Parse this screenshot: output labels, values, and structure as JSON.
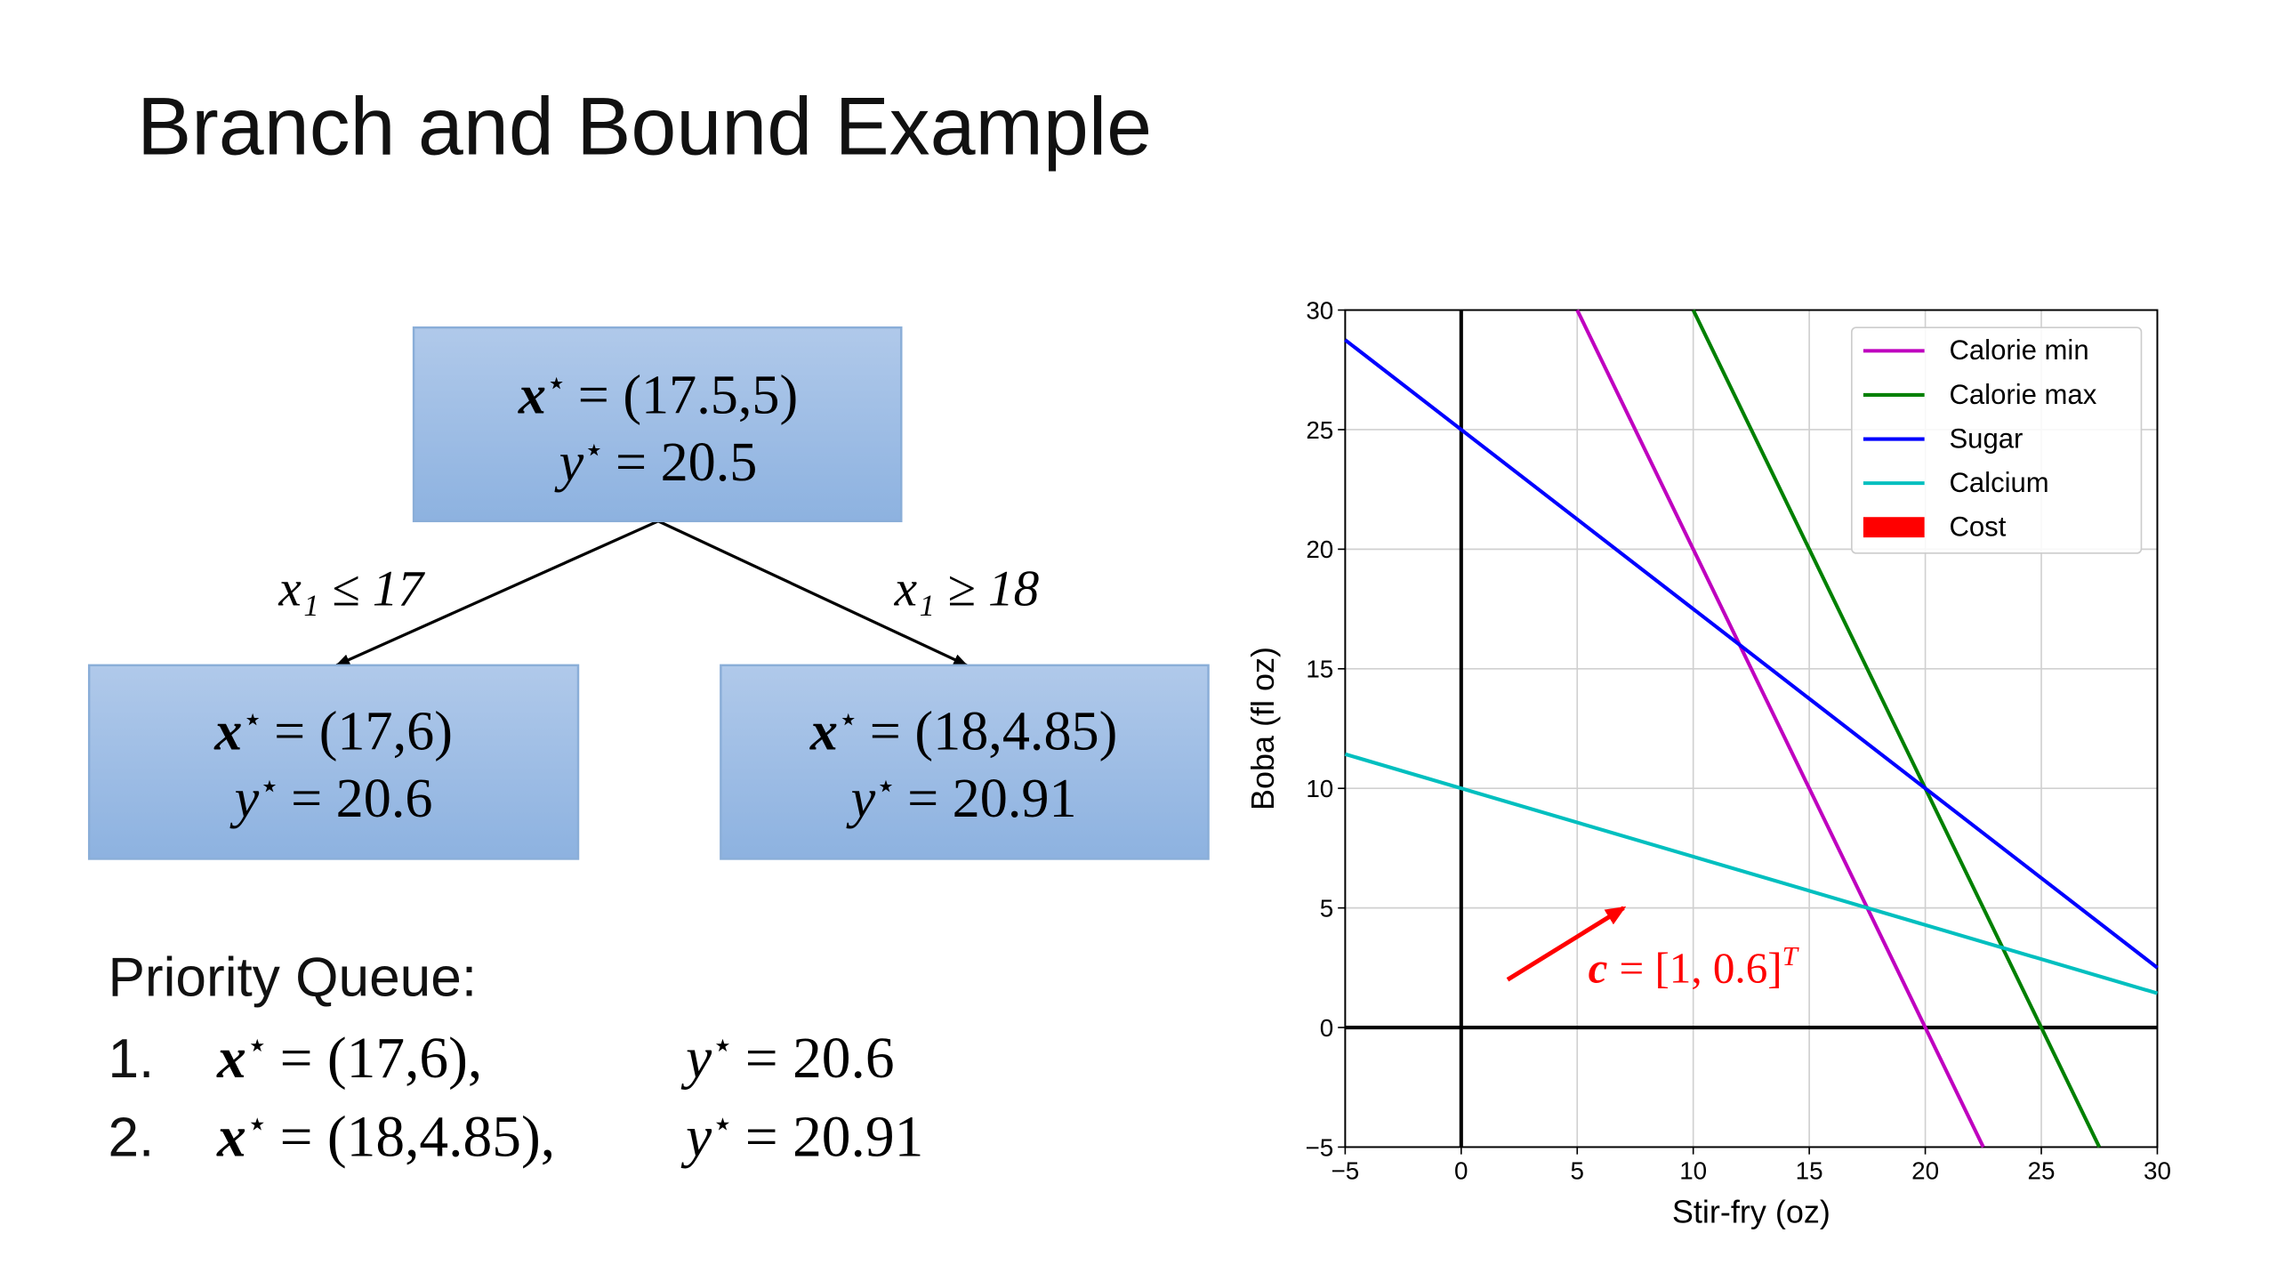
{
  "title": "Branch and Bound Example",
  "notation": {
    "x": "x",
    "y": "y",
    "star": "⋆"
  },
  "tree": {
    "nodes": [
      {
        "x_value": "= (17.5,5)",
        "y_value": "= 20.5"
      },
      {
        "x_value": "= (17,6)",
        "y_value": "= 20.6"
      },
      {
        "x_value": "= (18,4.85)",
        "y_value": "= 20.91"
      }
    ],
    "edges": [
      {
        "label": "x₁ ≤ 17"
      },
      {
        "label": "x₁ ≥ 18"
      }
    ]
  },
  "priority_queue": {
    "title": "Priority Queue:",
    "items": [
      {
        "number": "1.",
        "x_value": "= (17,6),",
        "y_value": "= 20.6"
      },
      {
        "number": "2.",
        "x_value": "= (18,4.85),",
        "y_value": "= 20.91"
      }
    ]
  },
  "chart_data": {
    "type": "line",
    "xlabel": "Stir-fry (oz)",
    "ylabel": "Boba (fl oz)",
    "xlim": [
      -5,
      30
    ],
    "ylim": [
      -5,
      30
    ],
    "xticks": [
      {
        "value": -5,
        "label": "−5"
      },
      0,
      5,
      10,
      15,
      20,
      25,
      30
    ],
    "yticks": [
      {
        "value": -5,
        "label": "−5"
      },
      0,
      5,
      10,
      15,
      20,
      25,
      30
    ],
    "grid": true,
    "zero_lines": true,
    "legend": "upper right",
    "series": [
      {
        "name": "Calorie min",
        "color": "#bf00bf",
        "x": [
          5,
          22.5
        ],
        "values": [
          30,
          -5
        ]
      },
      {
        "name": "Calorie max",
        "color": "#008000",
        "x": [
          10,
          27.5
        ],
        "values": [
          30,
          -5
        ]
      },
      {
        "name": "Sugar",
        "color": "#0000ff",
        "x": [
          -5,
          30
        ],
        "values": [
          28.75,
          2.5
        ]
      },
      {
        "name": "Calcium",
        "color": "#00bfbf",
        "x": [
          -5,
          30
        ],
        "values": [
          11.43,
          1.43
        ]
      },
      {
        "name": "Cost",
        "color": "#ff0000",
        "x": [
          2,
          7
        ],
        "values": [
          2,
          5
        ],
        "style": "arrow"
      }
    ],
    "annotation": {
      "vector": "c",
      "text": "= [1, 0.6]",
      "sup": "T",
      "color": "#ff0000"
    }
  }
}
